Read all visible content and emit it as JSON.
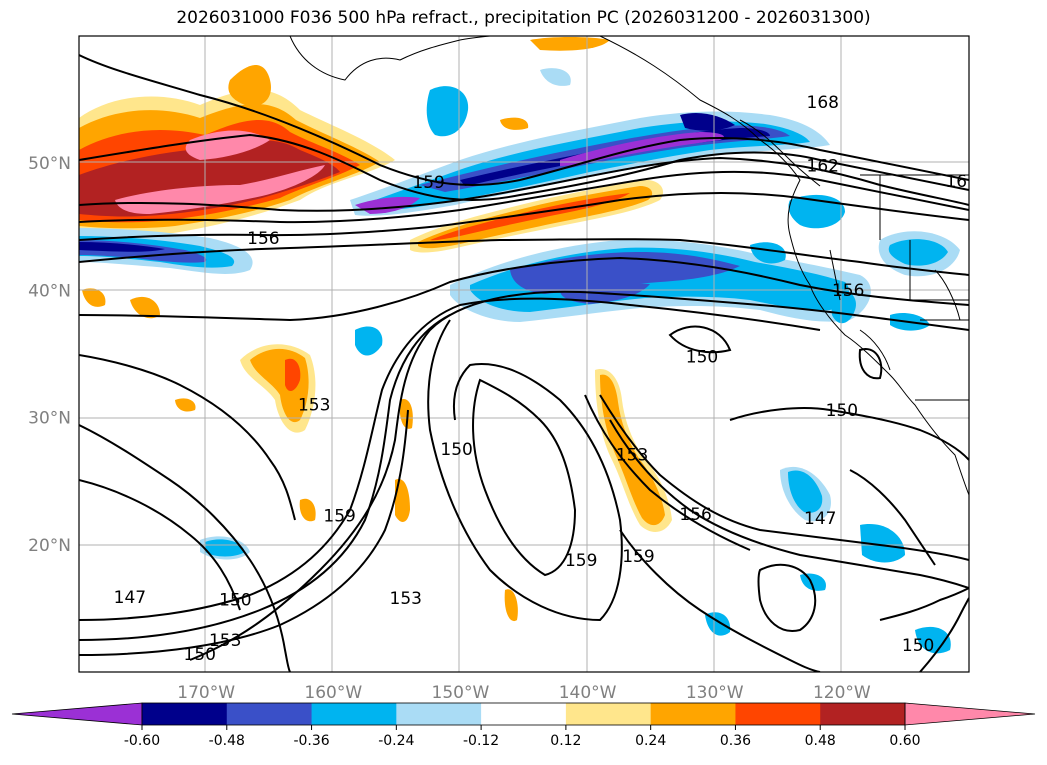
{
  "title": "2026031000 F036 500 hPa refract., precipitation PC (2026031200 - 2026031300)",
  "map": {
    "lon_range": [
      -180,
      -110
    ],
    "lat_range": [
      10,
      60
    ],
    "lat_labels": [
      "50°N",
      "40°N",
      "30°N",
      "20°N"
    ],
    "lat_values": [
      50,
      40,
      30,
      20
    ],
    "lon_labels": [
      "170°W",
      "160°W",
      "150°W",
      "140°W",
      "130°W",
      "120°W"
    ],
    "lon_values": [
      -170,
      -160,
      -150,
      -140,
      -130,
      -120
    ],
    "gridlines": true,
    "contour_labels": [
      {
        "text": "168",
        "lon": -121.5,
        "lat": 54.5
      },
      {
        "text": "162",
        "lon": -121.5,
        "lat": 49.5
      },
      {
        "text": "16",
        "lon": -111,
        "lat": 48.3
      },
      {
        "text": "159",
        "lon": -152.5,
        "lat": 48.2
      },
      {
        "text": "156",
        "lon": -165.5,
        "lat": 43.8
      },
      {
        "text": "156",
        "lon": -119.5,
        "lat": 39.7
      },
      {
        "text": "150",
        "lon": -131,
        "lat": 34.5
      },
      {
        "text": "150",
        "lon": -120,
        "lat": 30.3
      },
      {
        "text": "153",
        "lon": -161.5,
        "lat": 30.7
      },
      {
        "text": "150",
        "lon": -150.3,
        "lat": 27.2
      },
      {
        "text": "153",
        "lon": -136.5,
        "lat": 26.8
      },
      {
        "text": "156",
        "lon": -131.5,
        "lat": 22.1
      },
      {
        "text": "159",
        "lon": -159.5,
        "lat": 22
      },
      {
        "text": "159",
        "lon": -140.5,
        "lat": 18.5
      },
      {
        "text": "159",
        "lon": -136,
        "lat": 18.8
      },
      {
        "text": "147",
        "lon": -121.7,
        "lat": 21.8
      },
      {
        "text": "147",
        "lon": -176,
        "lat": 15.6
      },
      {
        "text": "150",
        "lon": -167.7,
        "lat": 15.4
      },
      {
        "text": "153",
        "lon": -154.3,
        "lat": 15.5
      },
      {
        "text": "153",
        "lon": -168.5,
        "lat": 12.2
      },
      {
        "text": "150",
        "lon": -170.5,
        "lat": 11.1
      },
      {
        "text": "150",
        "lon": -114,
        "lat": 11.8
      }
    ]
  },
  "colorbar": {
    "ticks": [
      "-0.60",
      "-0.48",
      "-0.36",
      "-0.24",
      "-0.12",
      "0.12",
      "0.24",
      "0.36",
      "0.48",
      "0.60"
    ],
    "colors": [
      "#9b30d5",
      "#00008b",
      "#3a50c8",
      "#00b4f0",
      "#aadcf5",
      "#ffffff",
      "#ffe68c",
      "#ffa500",
      "#ff4500",
      "#b22222",
      "#ff88aa",
      "#ff88aa"
    ],
    "extend": "both"
  }
}
